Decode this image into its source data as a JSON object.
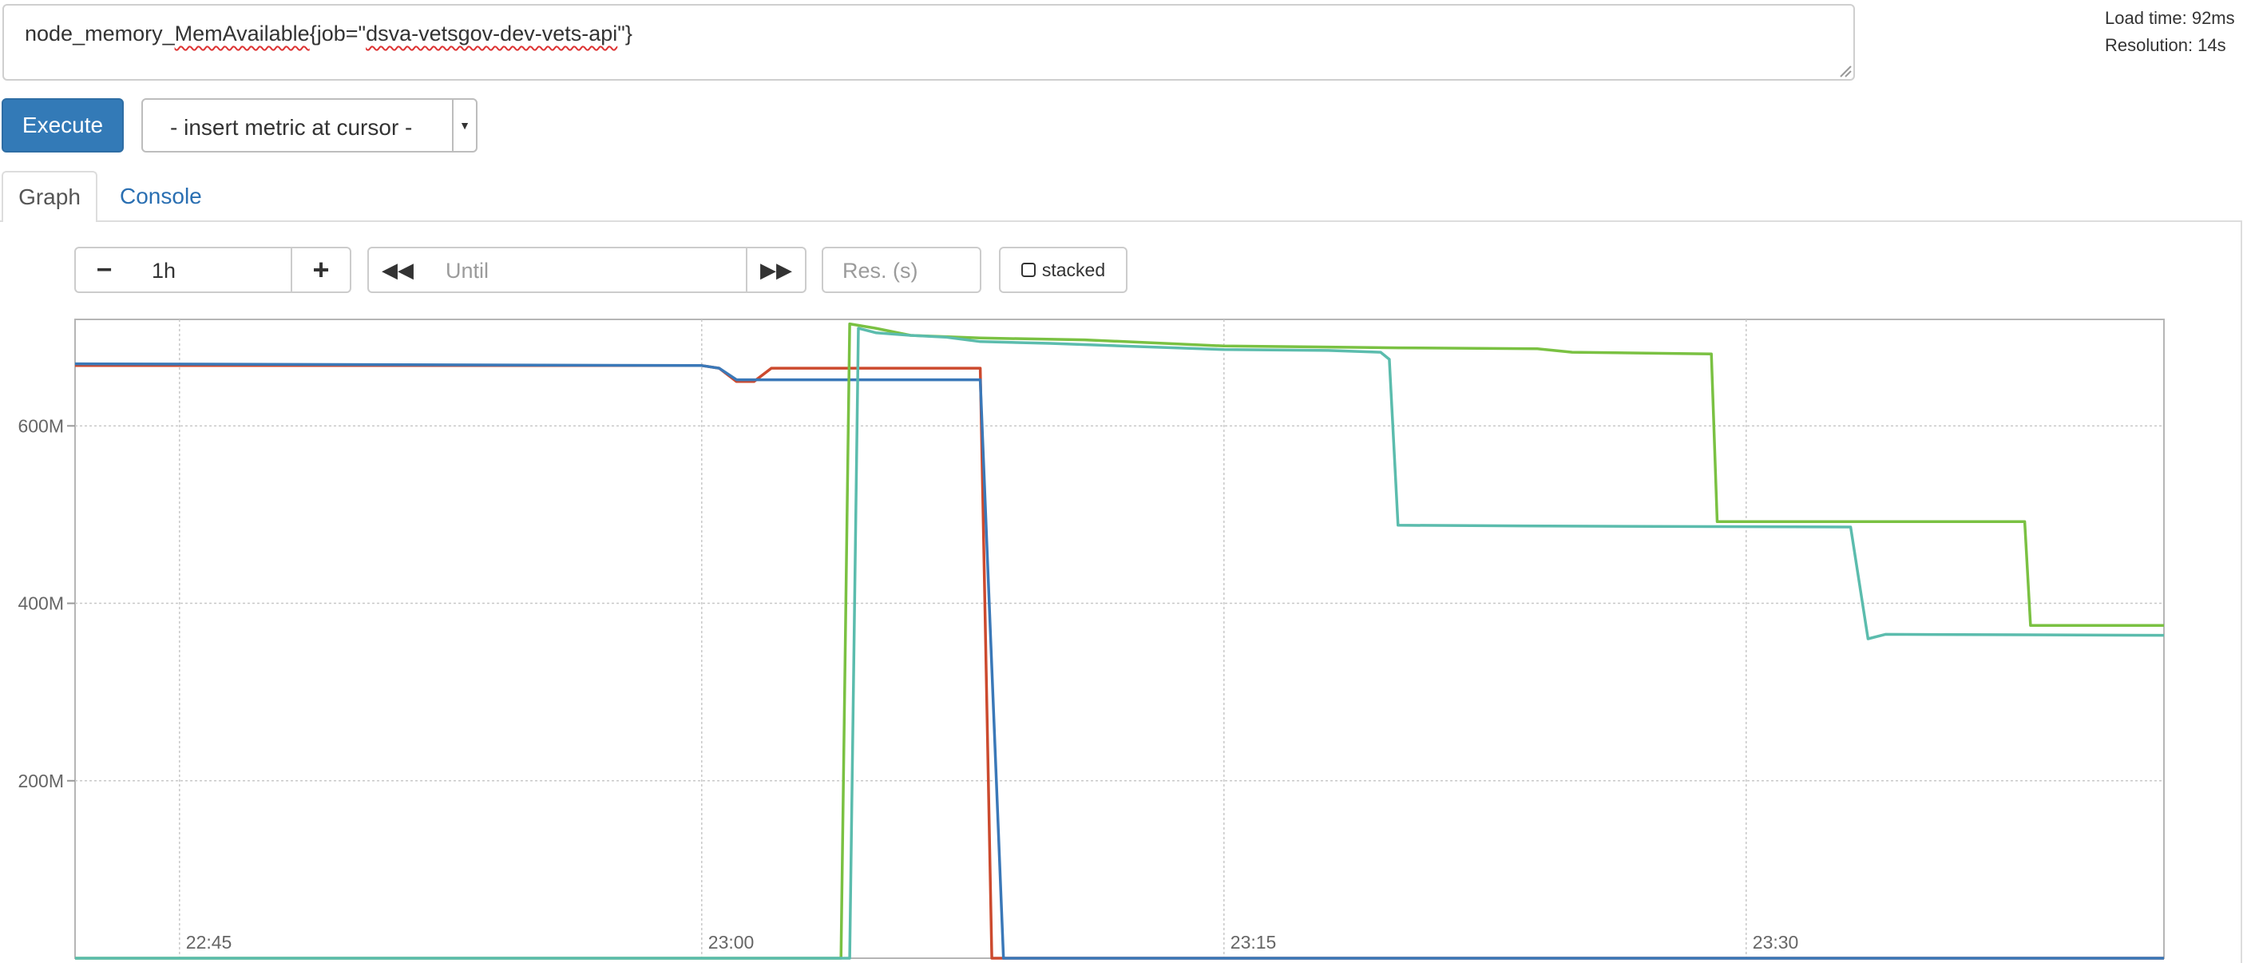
{
  "query": {
    "prefix": "node_memory_",
    "spell1": "MemAvailable",
    "middle": "{job=\"",
    "spell2": "dsva-vetsgov-dev-vets-api",
    "suffix": "\"}"
  },
  "meta": {
    "load_time": "Load time: 92ms",
    "resolution": "Resolution: 14s"
  },
  "toolbar": {
    "execute_label": "Execute",
    "insert_metric_label": "- insert metric at cursor -"
  },
  "tabs": [
    {
      "label": "Graph",
      "active": true
    },
    {
      "label": "Console",
      "active": false
    }
  ],
  "graph_controls": {
    "range_minus": "−",
    "range_value": "1h",
    "range_plus": "+",
    "until_placeholder": "Until",
    "res_placeholder": "Res. (s)",
    "stacked_label": "stacked"
  },
  "colors": {
    "accent": "#337ab7",
    "link": "#2a6fb2",
    "green": "#7ac142",
    "teal": "#5bbcad",
    "red": "#cc4a2e",
    "blue": "#3a78b8"
  },
  "chart_data": {
    "type": "line",
    "x_unit": "time (HH:MM)",
    "xlim": [
      "22:42",
      "23:42"
    ],
    "ylim": [
      0,
      720
    ],
    "y_unit": "M (bytes)",
    "y_ticks": [
      200,
      400,
      600
    ],
    "y_tick_labels": [
      "200M",
      "400M",
      "600M"
    ],
    "x_ticks": [
      "22:45",
      "23:00",
      "23:15",
      "23:30"
    ],
    "grid": true,
    "legend": "none",
    "series": [
      {
        "color": "#cc4a2e",
        "points": [
          [
            "22:42",
            668
          ],
          [
            "23:00",
            668
          ],
          [
            "23:00:30",
            665
          ],
          [
            "23:01",
            650
          ],
          [
            "23:01:30",
            650
          ],
          [
            "23:02",
            665
          ],
          [
            "23:08",
            665
          ],
          [
            "23:08:20",
            0
          ],
          [
            "23:42",
            0
          ]
        ]
      },
      {
        "color": "#3a78b8",
        "points": [
          [
            "22:42",
            670
          ],
          [
            "23:00",
            668
          ],
          [
            "23:00:30",
            665
          ],
          [
            "23:01",
            652
          ],
          [
            "23:08",
            652
          ],
          [
            "23:08:40",
            0
          ],
          [
            "23:42",
            0
          ]
        ]
      },
      {
        "color": "#7ac142",
        "points": [
          [
            "22:42",
            0
          ],
          [
            "23:04",
            0
          ],
          [
            "23:04:15",
            715
          ],
          [
            "23:05",
            710
          ],
          [
            "23:06",
            702
          ],
          [
            "23:08",
            699
          ],
          [
            "23:11",
            697
          ],
          [
            "23:15",
            690
          ],
          [
            "23:20",
            688
          ],
          [
            "23:24",
            687
          ],
          [
            "23:25",
            683
          ],
          [
            "23:29",
            681
          ],
          [
            "23:29:10",
            492
          ],
          [
            "23:38",
            492
          ],
          [
            "23:38:10",
            375
          ],
          [
            "23:42",
            375
          ]
        ]
      },
      {
        "color": "#5bbcad",
        "points": [
          [
            "22:42",
            0
          ],
          [
            "23:04:15",
            0
          ],
          [
            "23:04:30",
            710
          ],
          [
            "23:05",
            705
          ],
          [
            "23:06",
            702
          ],
          [
            "23:07",
            700
          ],
          [
            "23:08",
            695
          ],
          [
            "23:10",
            693
          ],
          [
            "23:15",
            686
          ],
          [
            "23:18",
            685
          ],
          [
            "23:19:30",
            683
          ],
          [
            "23:19:45",
            675
          ],
          [
            "23:20",
            488
          ],
          [
            "23:25",
            487
          ],
          [
            "23:33",
            486
          ],
          [
            "23:33:30",
            360
          ],
          [
            "23:34",
            365
          ],
          [
            "23:42",
            364
          ]
        ]
      }
    ]
  }
}
